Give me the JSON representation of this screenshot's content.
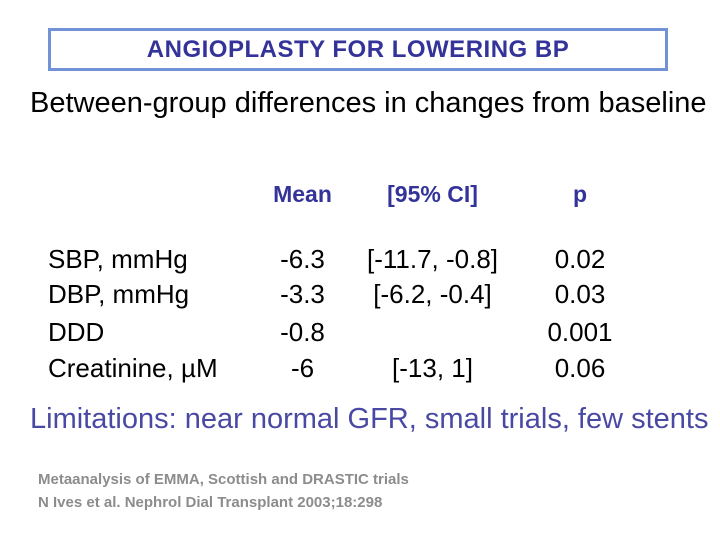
{
  "slide": {
    "title": "ANGIOPLASTY FOR LOWERING BP",
    "subtitle": "Between-group differences in changes from baseline",
    "table": {
      "headers": {
        "label": "",
        "mean": "Mean",
        "ci": "[95% CI]",
        "p": "p"
      },
      "rows": [
        {
          "label": "SBP, mmHg",
          "mean": "-6.3",
          "ci": "[-11.7, -0.8]",
          "p": "0.02"
        },
        {
          "label": "DBP, mmHg",
          "mean": "-3.3",
          "ci": "[-6.2, -0.4]",
          "p": "0.03"
        },
        {
          "label": "DDD",
          "mean": "-0.8",
          "ci": "",
          "p": "0.001"
        },
        {
          "label": "Creatinine, µM",
          "mean": "-6",
          "ci": "[-13, 1]",
          "p": "0.06"
        }
      ]
    },
    "limitations": "Limitations: near normal GFR, small trials, few stents",
    "footer": {
      "line1": "Metaanalysis of EMMA, Scottish and DRASTIC trials",
      "line2": "N Ives et al. Nephrol Dial Transplant 2003;18:298"
    },
    "colors": {
      "title_navy": "#333399",
      "title_box_border": "#7292d6",
      "body_text": "#000000",
      "limitations_indigo": "#4949a3",
      "footer_gray": "#8c8c8c",
      "background": "#ffffff"
    }
  }
}
